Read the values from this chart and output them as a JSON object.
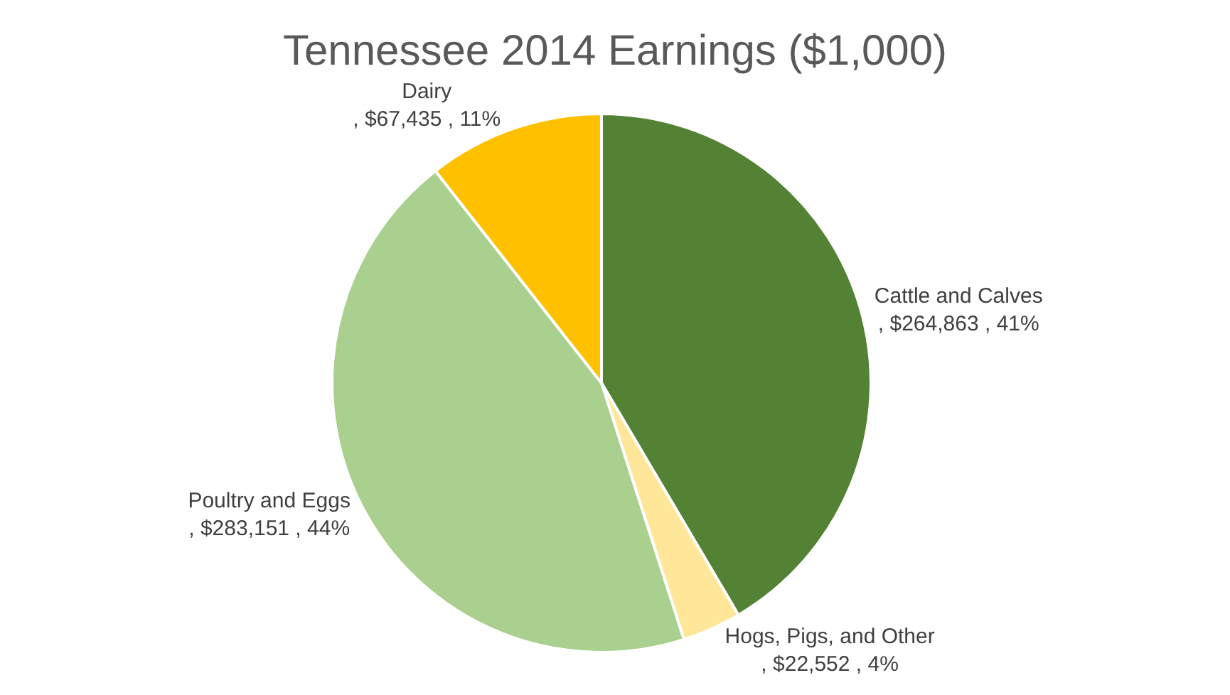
{
  "chart_data": {
    "type": "pie",
    "title": "Tennessee 2014 Earnings ($1,000)",
    "categories": [
      "Cattle and Calves",
      "Hogs, Pigs, and Other",
      "Poultry and Eggs",
      "Dairy"
    ],
    "values": [
      264863,
      22552,
      283151,
      67435
    ],
    "colors": [
      "#548235",
      "#ffe699",
      "#a9d08e",
      "#ffc000"
    ],
    "value_labels": [
      ", $264,863 , 41%",
      ", $22,552 , 4%",
      ", $283,151 , 44%",
      ", $67,435 , 11%"
    ],
    "legend": false
  }
}
